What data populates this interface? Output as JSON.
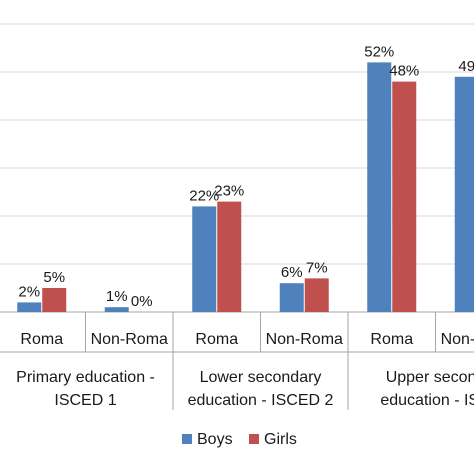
{
  "chart_data": {
    "type": "bar",
    "categories": [
      "Roma",
      "Non-Roma",
      "Roma",
      "Non-Roma",
      "Roma",
      "Non-Roma"
    ],
    "groups": [
      {
        "label_line1": "Primary education -",
        "label_line2": "ISCED 1",
        "categories": [
          0,
          1
        ]
      },
      {
        "label_line1": "Lower secondary",
        "label_line2": "education - ISCED 2",
        "categories": [
          2,
          3
        ]
      },
      {
        "label_line1": "Upper second",
        "label_line2": "education - ISC",
        "categories": [
          4,
          5
        ]
      }
    ],
    "series": [
      {
        "name": "Boys",
        "color": "#4f81bd",
        "values": [
          2,
          1,
          22,
          6,
          52,
          49
        ],
        "labels": [
          "2%",
          "1%",
          "22%",
          "6%",
          "52%",
          "49"
        ]
      },
      {
        "name": "Girls",
        "color": "#c0504d",
        "values": [
          5,
          0,
          23,
          7,
          48,
          null
        ],
        "labels": [
          "5%",
          "0%",
          "23%",
          "7%",
          "48%",
          ""
        ]
      }
    ],
    "ylim": [
      0,
      60
    ],
    "grid": true,
    "legend_position": "bottom"
  }
}
